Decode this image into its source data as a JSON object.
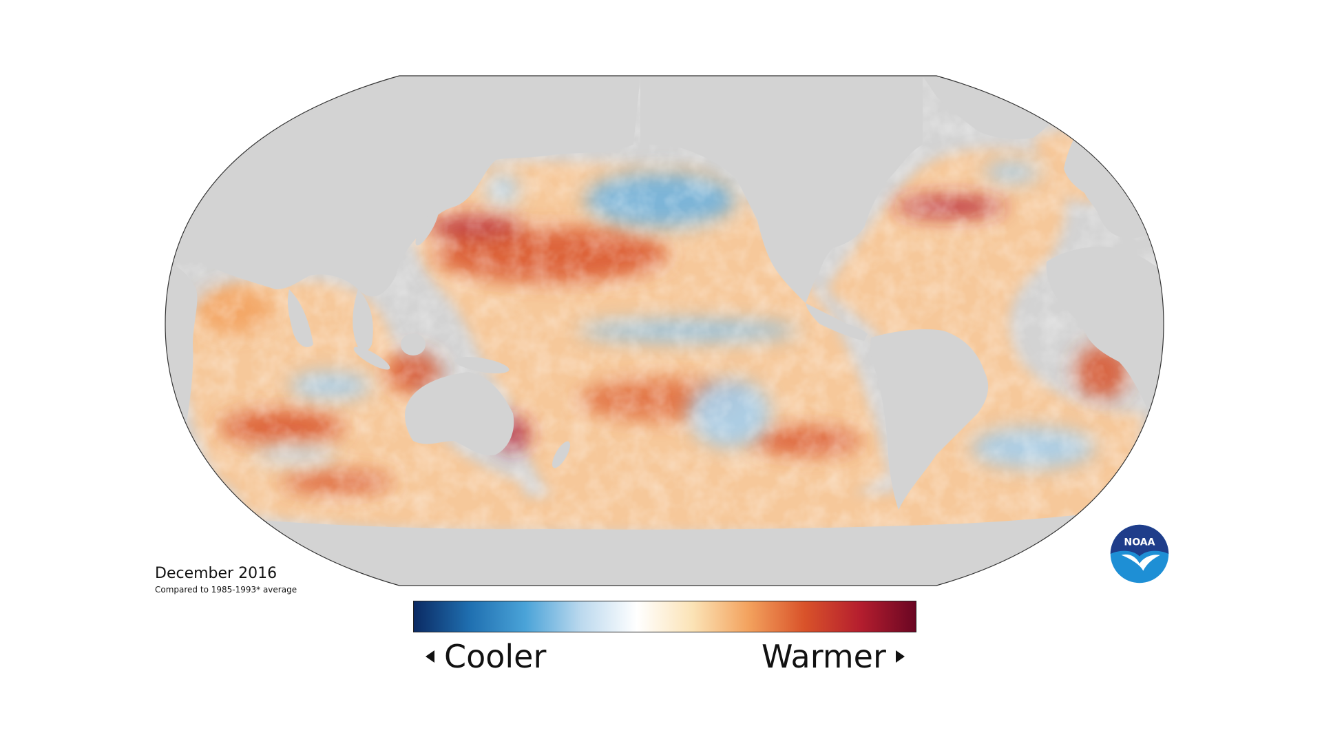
{
  "map": {
    "date_label": "December 2016",
    "comparison_label": "Compared to 1985-1993* average"
  },
  "legend": {
    "cool_label": "Cooler",
    "warm_label": "Warmer",
    "colors": [
      "#0b2a63",
      "#1f6fb0",
      "#4aa3d8",
      "#bcd9ee",
      "#ffffff",
      "#fbe3b6",
      "#f3a25e",
      "#d9532a",
      "#b51e2e",
      "#6a0623"
    ]
  },
  "colors": {
    "land": "#d3d3d3",
    "ocean_base": "#f6c89a",
    "outline": "#333333"
  },
  "logo": {
    "text": "NOAA",
    "colors": {
      "dark": "#1f3d8a",
      "light": "#1e8fd5",
      "bird": "#ffffff"
    }
  }
}
